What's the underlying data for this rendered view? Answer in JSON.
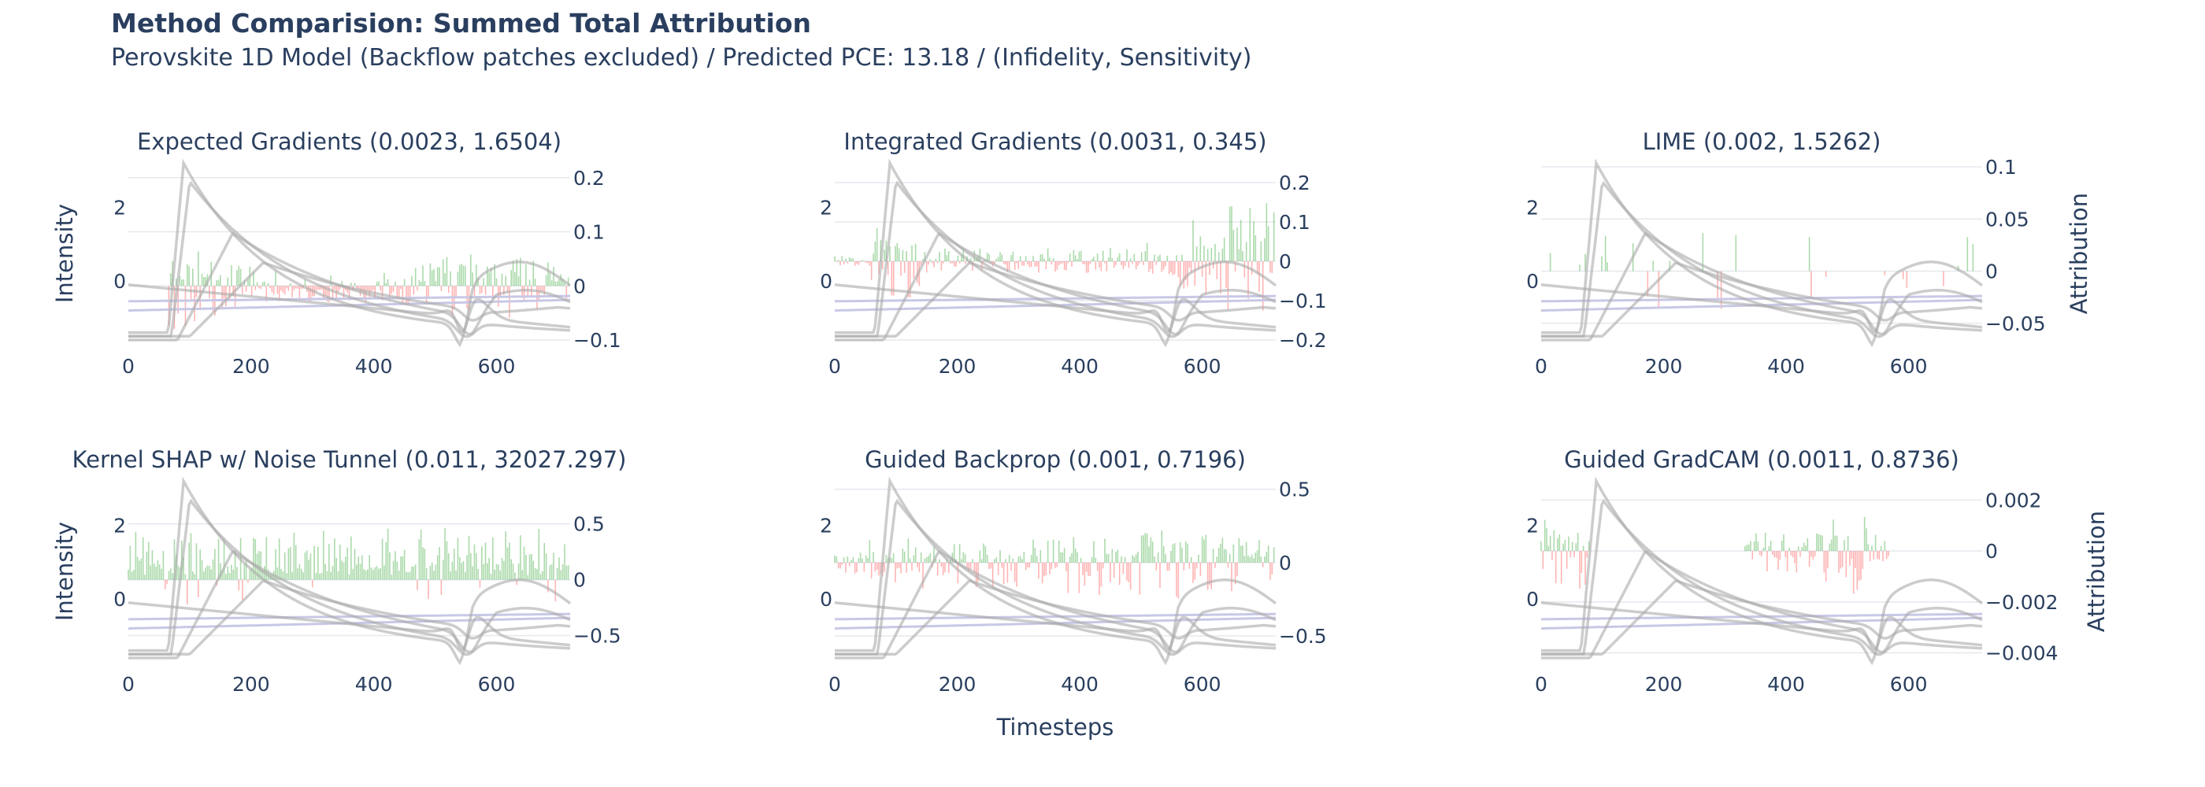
{
  "title": "Method Comparision: Summed Total Attribution",
  "subtitle": "Perovskite 1D Model (Backflow patches excluded) / Predicted PCE: 13.18 / (Infidelity, Sensitivity)",
  "colors": {
    "positive": "#66bb66",
    "negative": "#ff7777",
    "curve": "#aaaaaa",
    "baseline": "#c8c8e6",
    "text": "#2a3f5f",
    "grid": "#e5e8ee"
  },
  "axis_titles": {
    "x": "Timesteps",
    "y_left": "Intensity",
    "y_right": "Attribution"
  },
  "chart_data": [
    {
      "type": "bar",
      "title": "Expected Gradients (0.0023, 1.6504)",
      "xlim": [
        0,
        720
      ],
      "xticks": [
        0,
        200,
        400,
        600
      ],
      "ylim_intensity": [
        -1.6,
        3.1
      ],
      "yticks_intensity": [
        0,
        2
      ],
      "ylim_attribution": [
        -0.1,
        0.22
      ],
      "yticks_attribution": [
        0.2,
        0.1,
        0,
        -0.1
      ],
      "tick_labels_attribution": [
        "0.2",
        "0.1",
        "0",
        "−0.1"
      ],
      "profile": "eg",
      "amp_pos": 0.085,
      "amp_neg": 0.085,
      "density": 1.0
    },
    {
      "type": "bar",
      "title": "Integrated Gradients (0.0031, 0.345)",
      "xlim": [
        0,
        720
      ],
      "xticks": [
        0,
        200,
        400,
        600
      ],
      "ylim_intensity": [
        -1.6,
        3.1
      ],
      "yticks_intensity": [
        0,
        2
      ],
      "ylim_attribution": [
        -0.2,
        0.24
      ],
      "yticks_attribution": [
        0.2,
        0.1,
        0,
        -0.1,
        -0.2
      ],
      "tick_labels_attribution": [
        "0.2",
        "0.1",
        "0",
        "−0.1",
        "−0.2"
      ],
      "profile": "ig",
      "amp_pos": 0.14,
      "amp_neg": 0.12,
      "density": 1.0
    },
    {
      "type": "bar",
      "title": "LIME (0.002, 1.5262)",
      "xlim": [
        0,
        720
      ],
      "xticks": [
        0,
        200,
        400,
        600
      ],
      "ylim_intensity": [
        -1.6,
        3.1
      ],
      "yticks_intensity": [
        0,
        2
      ],
      "ylim_attribution": [
        -0.066,
        0.1
      ],
      "yticks_attribution": [
        0.1,
        0.05,
        0,
        -0.05
      ],
      "tick_labels_attribution": [
        "0.1",
        "0.05",
        "0",
        "−0.05"
      ],
      "profile": "lime",
      "amp_pos": 0.06,
      "amp_neg": 0.05,
      "density": 0.12
    },
    {
      "type": "bar",
      "title": "Kernel SHAP w/ Noise Tunnel (0.011, 32027.297)",
      "xlim": [
        0,
        720
      ],
      "xticks": [
        0,
        200,
        400,
        600
      ],
      "ylim_intensity": [
        -1.6,
        3.1
      ],
      "yticks_intensity": [
        0,
        2
      ],
      "ylim_attribution": [
        -0.7,
        0.85
      ],
      "yticks_attribution": [
        0.5,
        0,
        -0.5
      ],
      "tick_labels_attribution": [
        "0.5",
        "0",
        "−0.5"
      ],
      "profile": "shap",
      "amp_pos": 0.5,
      "amp_neg": 0.25,
      "density": 1.0
    },
    {
      "type": "bar",
      "title": "Guided Backprop (0.001, 0.7196)",
      "xlim": [
        0,
        720
      ],
      "xticks": [
        0,
        200,
        400,
        600
      ],
      "ylim_intensity": [
        -1.6,
        3.1
      ],
      "yticks_intensity": [
        0,
        2
      ],
      "ylim_attribution": [
        -0.65,
        0.53
      ],
      "yticks_attribution": [
        0.5,
        0,
        -0.5
      ],
      "tick_labels_attribution": [
        "0.5",
        "0",
        "−0.5"
      ],
      "profile": "gb",
      "amp_pos": 0.25,
      "amp_neg": 0.3,
      "density": 1.0
    },
    {
      "type": "bar",
      "title": "Guided GradCAM (0.0011, 0.8736)",
      "xlim": [
        0,
        720
      ],
      "xticks": [
        0,
        200,
        400,
        600
      ],
      "ylim_intensity": [
        -1.6,
        3.1
      ],
      "yticks_intensity": [
        0,
        2
      ],
      "ylim_attribution": [
        -0.0042,
        0.0026
      ],
      "yticks_attribution": [
        0.002,
        0,
        -0.002,
        -0.004
      ],
      "tick_labels_attribution": [
        "0.002",
        "0",
        "−0.002",
        "−0.004"
      ],
      "profile": "ggc",
      "amp_pos": 0.0015,
      "amp_neg": 0.0018,
      "density": 1.0
    }
  ]
}
